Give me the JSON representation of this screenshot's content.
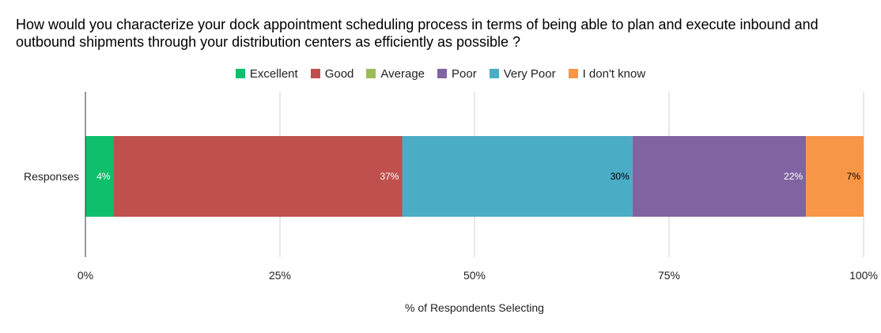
{
  "chart_data": {
    "type": "bar",
    "orientation": "horizontal",
    "stacked": true,
    "title": "How would you characterize your dock appointment scheduling process in terms of being able to plan and execute inbound and outbound shipments through your distribution centers as efficiently as possible ?",
    "xlabel": "% of Respondents Selecting",
    "ylabel": "",
    "categories": [
      "Responses"
    ],
    "xlim": [
      0,
      100
    ],
    "x_ticks": [
      "0%",
      "25%",
      "50%",
      "75%",
      "100%"
    ],
    "legend": [
      "Excellent",
      "Good",
      "Average",
      "Poor",
      "Very Poor",
      "I don't know"
    ],
    "legend_position": "top",
    "grid": true,
    "segments": [
      {
        "name": "Excellent",
        "value": 3.6,
        "label": "4%",
        "color": "#0fbf6b",
        "label_color": "#ffffff"
      },
      {
        "name": "Good",
        "value": 37.1,
        "label": "37%",
        "color": "#c0504d",
        "label_color": "#ffffff"
      },
      {
        "name": "Very Poor",
        "value": 29.6,
        "label": "30%",
        "color": "#4bacc6",
        "label_color": "#000000"
      },
      {
        "name": "Poor",
        "value": 22.3,
        "label": "22%",
        "color": "#8064a2",
        "label_color": "#ffffff"
      },
      {
        "name": "I don't know",
        "value": 7.4,
        "label": "7%",
        "color": "#f79646",
        "label_color": "#000000"
      }
    ],
    "legend_colors": {
      "Excellent": "#0fbf6b",
      "Good": "#c0504d",
      "Average": "#9bbb59",
      "Poor": "#8064a2",
      "Very Poor": "#4bacc6",
      "I don't know": "#f79646"
    }
  }
}
